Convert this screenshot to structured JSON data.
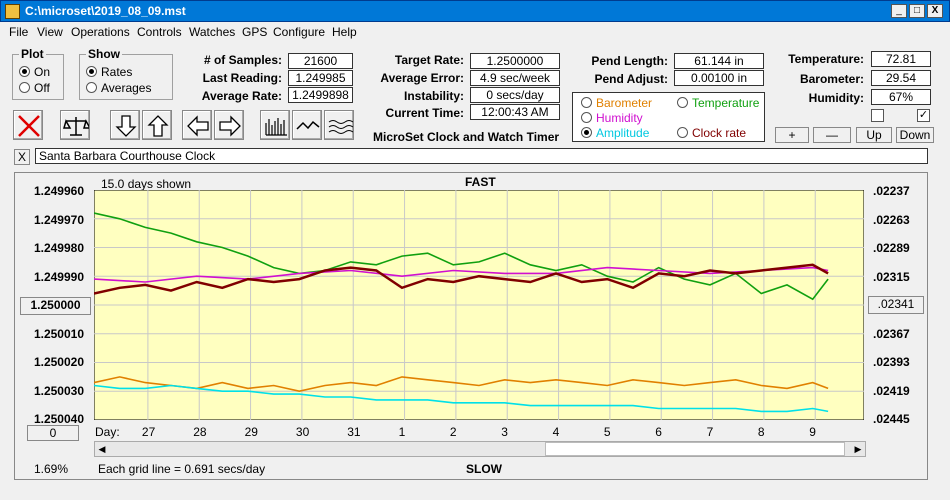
{
  "window": {
    "title": "C:\\microset\\2019_08_09.mst",
    "min": "_",
    "max": "□",
    "close": "X"
  },
  "menu": [
    "File",
    "View",
    "Operations",
    "Controls",
    "Watches",
    "GPS",
    "Configure",
    "Help"
  ],
  "plot_group": {
    "title": "Plot",
    "on": "On",
    "off": "Off",
    "selected": "On"
  },
  "show_group": {
    "title": "Show",
    "rates": "Rates",
    "averages": "Averages",
    "selected": "Rates"
  },
  "stats": {
    "samples_label": "# of Samples:",
    "samples": "21600",
    "last_label": "Last Reading:",
    "last": "1.249985",
    "avg_rate_label": "Average Rate:",
    "avg_rate": "1.2499898",
    "target_label": "Target Rate:",
    "target": "1.2500000",
    "avg_err_label": "Average Error:",
    "avg_err": "4.9 sec/week",
    "instab_label": "Instability:",
    "instab": "0 secs/day",
    "time_label": "Current Time:",
    "time": "12:00:43 AM",
    "pend_len_label": "Pend Length:",
    "pend_len": "61.144 in",
    "pend_adj_label": "Pend Adjust:",
    "pend_adj": "0.00100 in",
    "temp_label": "Temperature:",
    "temp": "72.81",
    "baro_label": "Barometer:",
    "baro": "29.54",
    "hum_label": "Humidity:",
    "hum": "67%"
  },
  "app_title": "MicroSet Clock and Watch Timer",
  "sensor_options": [
    {
      "label": "Barometer",
      "color": "#e08000"
    },
    {
      "label": "Temperature",
      "color": "#10a010"
    },
    {
      "label": "Humidity",
      "color": "#d010d0"
    },
    {
      "label": "Amplitude",
      "color": "#00c8e0",
      "selected": true
    },
    {
      "label": "Clock rate",
      "color": "#800000"
    }
  ],
  "adjust_buttons": {
    "plus": "+",
    "minus": "—",
    "up": "Up",
    "down": "Down"
  },
  "clock_name": "Santa Barbara Courthouse Clock",
  "close_small": "X",
  "chart_header": {
    "days_shown": "15.0 days shown",
    "fast": "FAST",
    "slow": "SLOW",
    "grid_note": "Each grid line = 0.691 secs/day",
    "percent": "1.69%",
    "day_label": "Day:",
    "left_btn": "1.250000",
    "bottom_btn": "0",
    "right_btn": ".02341"
  },
  "chart_data": {
    "type": "line",
    "y_left_ticks": [
      "1.249960",
      "1.249970",
      "1.249980",
      "1.249990",
      "1.250000",
      "1.250010",
      "1.250020",
      "1.250030",
      "1.250040"
    ],
    "y_right_ticks": [
      ".02237",
      ".02263",
      ".02289",
      ".02315",
      ".02341",
      ".02367",
      ".02393",
      ".02419",
      ".02445"
    ],
    "ylim_left": [
      1.24996,
      1.25004
    ],
    "x_ticks": [
      "27",
      "28",
      "29",
      "30",
      "31",
      "1",
      "2",
      "3",
      "4",
      "5",
      "6",
      "7",
      "8",
      "9"
    ],
    "xlim_days": [
      0,
      15
    ],
    "grid": true,
    "series": [
      {
        "name": "Temperature",
        "color": "#10a010",
        "x": [
          0,
          0.5,
          1,
          1.5,
          2,
          2.5,
          3,
          3.5,
          4,
          4.5,
          5,
          5.5,
          6,
          6.5,
          7,
          7.5,
          8,
          8.5,
          9,
          9.5,
          10,
          10.5,
          11,
          11.5,
          12,
          12.5,
          13,
          13.5,
          14,
          14.3
        ],
        "y": [
          1.249968,
          1.24997,
          1.249973,
          1.249975,
          1.249978,
          1.24998,
          1.249983,
          1.249987,
          1.249989,
          1.249988,
          1.249985,
          1.249986,
          1.249983,
          1.249982,
          1.249986,
          1.249985,
          1.249982,
          1.249986,
          1.249988,
          1.249986,
          1.24999,
          1.249992,
          1.249987,
          1.249991,
          1.249993,
          1.249989,
          1.249996,
          1.249993,
          1.249998,
          1.249991
        ]
      },
      {
        "name": "Humidity",
        "color": "#d010d0",
        "x": [
          0,
          1,
          2,
          3,
          4,
          5,
          6,
          7,
          8,
          9,
          10,
          11,
          12,
          13,
          14,
          14.3
        ],
        "y": [
          1.249991,
          1.249992,
          1.24999,
          1.249991,
          1.249989,
          1.249988,
          1.24999,
          1.249988,
          1.249989,
          1.249989,
          1.249987,
          1.249988,
          1.249989,
          1.249988,
          1.249987,
          1.249988
        ]
      },
      {
        "name": "Clock rate",
        "color": "#800000",
        "x": [
          0,
          0.5,
          1,
          1.5,
          2,
          2.5,
          3,
          3.5,
          4,
          4.5,
          5,
          5.5,
          6,
          6.5,
          7,
          7.5,
          8,
          8.5,
          9,
          9.5,
          10,
          10.5,
          11,
          11.5,
          12,
          12.5,
          13,
          13.5,
          14,
          14.3
        ],
        "y": [
          1.249996,
          1.249994,
          1.249993,
          1.249995,
          1.249992,
          1.249994,
          1.249991,
          1.249992,
          1.249991,
          1.249988,
          1.249987,
          1.249988,
          1.249994,
          1.249991,
          1.249992,
          1.24999,
          1.249991,
          1.249992,
          1.249989,
          1.249992,
          1.249991,
          1.249994,
          1.249989,
          1.24999,
          1.249988,
          1.249989,
          1.249988,
          1.249987,
          1.249986,
          1.249989
        ]
      },
      {
        "name": "Barometer",
        "color": "#e08000",
        "x": [
          0,
          0.5,
          1,
          1.5,
          2,
          2.5,
          3,
          3.5,
          4,
          4.5,
          5,
          5.5,
          6,
          6.5,
          7,
          7.5,
          8,
          8.5,
          9,
          9.5,
          10,
          10.5,
          11,
          11.5,
          12,
          12.5,
          13,
          13.5,
          14,
          14.3
        ],
        "y": [
          1.250027,
          1.250025,
          1.250027,
          1.250028,
          1.250029,
          1.250027,
          1.250029,
          1.250028,
          1.25003,
          1.250028,
          1.250027,
          1.250028,
          1.250025,
          1.250026,
          1.250027,
          1.250028,
          1.250026,
          1.250027,
          1.250026,
          1.250027,
          1.250028,
          1.250026,
          1.250027,
          1.250028,
          1.250027,
          1.250026,
          1.250028,
          1.250029,
          1.250027,
          1.250029
        ]
      },
      {
        "name": "Amplitude",
        "color": "#00e0e8",
        "x": [
          0,
          0.5,
          1,
          1.5,
          2,
          2.5,
          3,
          3.5,
          4,
          4.5,
          5,
          5.5,
          6,
          6.5,
          7,
          7.5,
          8,
          8.5,
          9,
          9.5,
          10,
          10.5,
          11,
          11.5,
          12,
          12.5,
          13,
          13.5,
          14,
          14.3
        ],
        "y": [
          1.250028,
          1.250029,
          1.250029,
          1.250028,
          1.250029,
          1.25003,
          1.25003,
          1.250031,
          1.250031,
          1.250032,
          1.250032,
          1.250033,
          1.250033,
          1.250033,
          1.250034,
          1.250034,
          1.250034,
          1.250035,
          1.250035,
          1.250035,
          1.250035,
          1.250035,
          1.250036,
          1.250036,
          1.250036,
          1.250036,
          1.250037,
          1.250037,
          1.250036,
          1.250037
        ]
      }
    ]
  }
}
